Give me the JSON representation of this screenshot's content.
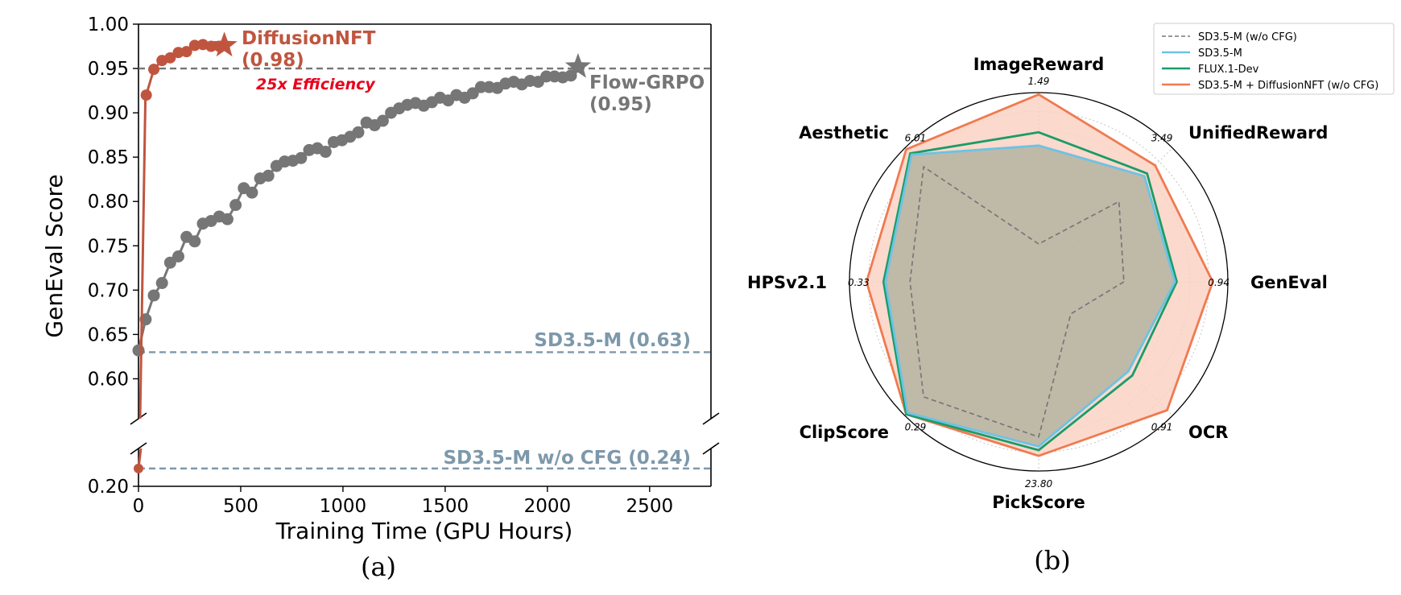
{
  "colors": {
    "nft": "#c0553f",
    "grpo": "#767676",
    "baseline": "#7d98ab",
    "efficiency": "#e8001c",
    "radar_wo_cfg": "#777777",
    "radar_sd35": "#6cc3e4",
    "radar_flux": "#1a9c68",
    "radar_nft": "#f07a50",
    "radar_nft_fill": "#fbd2c4",
    "radar_sd35_fill": "#b4b3a1"
  },
  "chart_data": [
    {
      "type": "line",
      "panel_caption": "(a)",
      "xlabel": "Training Time (GPU Hours)",
      "ylabel": "GenEval Score",
      "xlim": [
        0,
        2800
      ],
      "ylim_upper": [
        0.555,
        1.0
      ],
      "ylim_lower": [
        0.2,
        0.285
      ],
      "broken_y_axis": true,
      "x_ticks": [
        "0",
        "500",
        "1000",
        "1500",
        "2000",
        "2500"
      ],
      "x_tick_values": [
        0,
        500,
        1000,
        1500,
        2000,
        2500
      ],
      "y_ticks_upper": [
        "1.00",
        "0.95",
        "0.90",
        "0.85",
        "0.80",
        "0.75",
        "0.70",
        "0.65",
        "0.60"
      ],
      "y_tick_values_upper": [
        1.0,
        0.95,
        0.9,
        0.85,
        0.8,
        0.75,
        0.7,
        0.65,
        0.6
      ],
      "y_ticks_lower": [
        "0.20"
      ],
      "y_tick_values_lower": [
        0.2
      ],
      "series": [
        {
          "key": "grpo",
          "x": [
            0,
            35,
            75,
            115,
            155,
            195,
            235,
            275,
            315,
            355,
            395,
            435,
            475,
            515,
            555,
            595,
            635,
            675,
            715,
            755,
            795,
            835,
            875,
            915,
            955,
            995,
            1035,
            1075,
            1115,
            1155,
            1195,
            1235,
            1275,
            1315,
            1355,
            1395,
            1435,
            1475,
            1515,
            1555,
            1595,
            1635,
            1675,
            1715,
            1755,
            1795,
            1835,
            1875,
            1915,
            1955,
            1995,
            2035,
            2075,
            2115,
            2150
          ],
          "y": [
            0.632,
            0.667,
            0.694,
            0.708,
            0.731,
            0.738,
            0.76,
            0.755,
            0.775,
            0.778,
            0.783,
            0.78,
            0.796,
            0.815,
            0.81,
            0.826,
            0.829,
            0.84,
            0.845,
            0.846,
            0.849,
            0.858,
            0.86,
            0.856,
            0.867,
            0.869,
            0.873,
            0.878,
            0.889,
            0.886,
            0.891,
            0.9,
            0.905,
            0.909,
            0.911,
            0.908,
            0.912,
            0.917,
            0.914,
            0.92,
            0.917,
            0.922,
            0.929,
            0.929,
            0.928,
            0.933,
            0.935,
            0.932,
            0.936,
            0.935,
            0.941,
            0.941,
            0.94,
            0.942,
            0.952
          ]
        },
        {
          "key": "nft",
          "x": [
            38,
            75,
            115,
            155,
            195,
            235,
            275,
            315,
            355,
            395,
            420
          ],
          "y": [
            0.92,
            0.949,
            0.959,
            0.962,
            0.968,
            0.969,
            0.976,
            0.977,
            0.975,
            0.975,
            0.976
          ]
        }
      ],
      "nft_lower_point": {
        "x": 0,
        "y": 0.24
      },
      "baselines": [
        {
          "key": "sd35",
          "value": 0.63,
          "label": "SD3.5-M (0.63)"
        },
        {
          "key": "wo_cfg",
          "value": 0.24,
          "label": "SD3.5-M w/o CFG (0.24)"
        },
        {
          "key": "grpo_final",
          "value": 0.95
        }
      ],
      "annotations": {
        "nft_name": "DiffusionNFT",
        "nft_value": "(0.98)",
        "efficiency": "25x Efficiency",
        "grpo_name": "Flow-GRPO",
        "grpo_value": "(0.95)"
      }
    },
    {
      "type": "radar",
      "panel_caption": "(b)",
      "axes": [
        "GenEval",
        "OCR",
        "PickScore",
        "ClipScore",
        "HPSv2.1",
        "Aesthetic",
        "ImageReward",
        "UnifiedReward"
      ],
      "axis_max_labels": [
        "0.94",
        "0.91",
        "23.80",
        "0.29",
        "0.33",
        "6.01",
        "1.49",
        "3.49"
      ],
      "legend_position": "top-right",
      "series": [
        {
          "key": "radar_wo_cfg",
          "name": "SD3.5-M (w/o CFG)",
          "dash": true,
          "values": [
            0.45,
            0.24,
            0.82,
            0.86,
            0.68,
            0.86,
            0.2,
            0.6
          ]
        },
        {
          "key": "radar_sd35",
          "name": "SD3.5-M",
          "values": [
            0.72,
            0.67,
            0.87,
            0.98,
            0.81,
            0.95,
            0.72,
            0.79
          ]
        },
        {
          "key": "radar_flux",
          "name": "FLUX.1-Dev",
          "values": [
            0.73,
            0.7,
            0.89,
            0.99,
            0.82,
            0.96,
            0.79,
            0.81
          ]
        },
        {
          "key": "radar_nft",
          "name": "SD3.5-M + DiffusionNFT (w/o CFG)",
          "values": [
            0.92,
            0.96,
            0.92,
            0.99,
            0.91,
            0.99,
            0.99,
            0.87
          ]
        }
      ]
    }
  ]
}
